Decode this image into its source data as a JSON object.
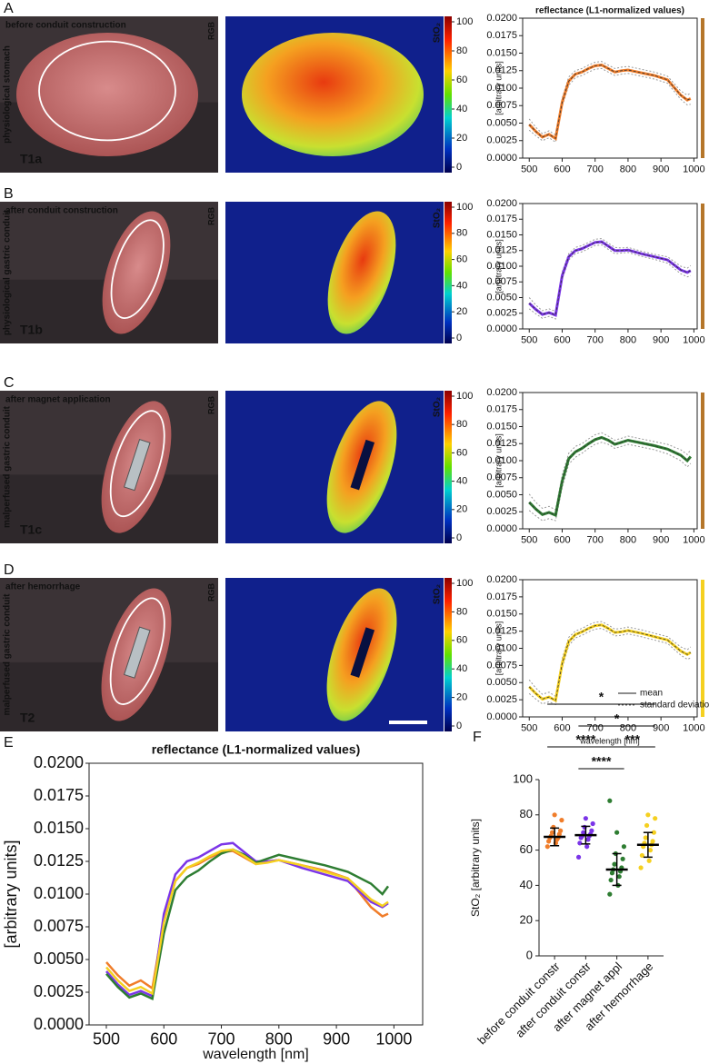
{
  "rows": [
    {
      "letter": "A",
      "condition": "before conduit construction",
      "tissue": "physiological stomach",
      "timepoint": "T1a",
      "rgb_label": "RGB",
      "sto2_label": "StO₂",
      "color": "#f07d2a"
    },
    {
      "letter": "B",
      "condition": "after conduit construction",
      "tissue": "physiological gastric conduit",
      "timepoint": "T1b",
      "rgb_label": "RGB",
      "sto2_label": "StO₂",
      "color": "#7b35e8"
    },
    {
      "letter": "C",
      "condition": "after magnet application",
      "tissue": "malperfused gastric conduit",
      "timepoint": "T1c",
      "rgb_label": "RGB",
      "sto2_label": "StO₂",
      "color": "#2e7d32"
    },
    {
      "letter": "D",
      "condition": "after hemorrhage",
      "tissue": "malperfused gastric conduit",
      "timepoint": "T2",
      "rgb_label": "RGB",
      "sto2_label": "StO₂",
      "color": "#f5d020"
    }
  ],
  "colorbar": {
    "ticks": [
      0,
      20,
      40,
      60,
      80,
      100
    ]
  },
  "chart_data": [
    {
      "type": "spectrum",
      "title": "reflectance (L1-normalized values)",
      "ylabel": "[arbitrary units]",
      "color": "#f07d2a",
      "bar_color": "#b5762a",
      "x": [
        500,
        520,
        540,
        560,
        580,
        600,
        620,
        640,
        660,
        680,
        700,
        720,
        740,
        760,
        780,
        800,
        840,
        880,
        920,
        960,
        980,
        990
      ],
      "values": [
        0.0048,
        0.0038,
        0.003,
        0.0034,
        0.0028,
        0.008,
        0.011,
        0.012,
        0.0123,
        0.0128,
        0.0132,
        0.0133,
        0.0128,
        0.0123,
        0.0125,
        0.0126,
        0.0122,
        0.0118,
        0.0112,
        0.009,
        0.0083,
        0.0085
      ],
      "sd": [
        0.0008,
        0.0006,
        0.0005,
        0.0005,
        0.0005,
        0.0006,
        0.0006,
        0.0005,
        0.0005,
        0.0005,
        0.0005,
        0.0005,
        0.0005,
        0.0005,
        0.0005,
        0.0005,
        0.0005,
        0.0005,
        0.0005,
        0.0006,
        0.0007,
        0.0008
      ],
      "xlim": [
        480,
        1010
      ],
      "xticks": [
        500,
        600,
        700,
        800,
        900,
        1000
      ],
      "ylim": [
        0,
        0.02
      ],
      "yticks": [
        {
          "value": 0,
          "label": "0.0000"
        },
        {
          "value": 0.0025,
          "label": "0.0025"
        },
        {
          "value": 0.005,
          "label": "0.0050"
        },
        {
          "value": 0.0075,
          "label": "0.0075"
        },
        {
          "value": 0.01,
          "label": "0.0100"
        },
        {
          "value": 0.0125,
          "label": "0.0125"
        },
        {
          "value": 0.015,
          "label": "0.0150"
        },
        {
          "value": 0.0175,
          "label": "0.0175"
        },
        {
          "value": 0.02,
          "label": "0.0200"
        }
      ]
    },
    {
      "type": "spectrum",
      "ylabel": "[arbitrary units]",
      "color": "#7b35e8",
      "bar_color": "#b5762a",
      "x": [
        500,
        520,
        540,
        560,
        580,
        600,
        620,
        640,
        660,
        680,
        700,
        720,
        740,
        760,
        780,
        800,
        840,
        880,
        920,
        960,
        980,
        990
      ],
      "values": [
        0.0041,
        0.0031,
        0.0023,
        0.0026,
        0.0022,
        0.0085,
        0.0115,
        0.0125,
        0.0128,
        0.0133,
        0.0138,
        0.0139,
        0.0132,
        0.0125,
        0.0125,
        0.0126,
        0.012,
        0.0115,
        0.011,
        0.0094,
        0.009,
        0.0093
      ],
      "sd": [
        0.0009,
        0.0007,
        0.0006,
        0.0006,
        0.0006,
        0.0006,
        0.0005,
        0.0005,
        0.0005,
        0.0005,
        0.0005,
        0.0005,
        0.0005,
        0.0005,
        0.0004,
        0.0004,
        0.0004,
        0.0004,
        0.0005,
        0.0006,
        0.0007,
        0.0008
      ],
      "xlim": [
        480,
        1010
      ],
      "xticks": [
        500,
        600,
        700,
        800,
        900,
        1000
      ],
      "ylim": [
        0,
        0.02
      ],
      "yticks": [
        {
          "value": 0,
          "label": "0.0000"
        },
        {
          "value": 0.0025,
          "label": "0.0025"
        },
        {
          "value": 0.005,
          "label": "0.0050"
        },
        {
          "value": 0.0075,
          "label": "0.0075"
        },
        {
          "value": 0.01,
          "label": "0.0100"
        },
        {
          "value": 0.0125,
          "label": "0.0125"
        },
        {
          "value": 0.015,
          "label": "0.0150"
        },
        {
          "value": 0.0175,
          "label": "0.0175"
        },
        {
          "value": 0.02,
          "label": "0.0200"
        }
      ]
    },
    {
      "type": "spectrum",
      "ylabel": "[arbitrary units]",
      "color": "#2e7d32",
      "bar_color": "#b5762a",
      "x": [
        500,
        520,
        540,
        560,
        580,
        600,
        620,
        640,
        660,
        680,
        700,
        720,
        740,
        760,
        780,
        800,
        840,
        880,
        920,
        960,
        980,
        990
      ],
      "values": [
        0.0039,
        0.0029,
        0.0021,
        0.0024,
        0.002,
        0.007,
        0.0103,
        0.0113,
        0.0118,
        0.0125,
        0.0131,
        0.0134,
        0.013,
        0.0124,
        0.0127,
        0.013,
        0.0126,
        0.0122,
        0.0117,
        0.0108,
        0.01,
        0.0106
      ],
      "sd": [
        0.0012,
        0.001,
        0.0009,
        0.0009,
        0.0008,
        0.0009,
        0.0008,
        0.0008,
        0.0007,
        0.0007,
        0.0007,
        0.0007,
        0.0006,
        0.0006,
        0.0006,
        0.0006,
        0.0006,
        0.0006,
        0.0007,
        0.0008,
        0.0009,
        0.001
      ],
      "xlim": [
        480,
        1010
      ],
      "xticks": [
        500,
        600,
        700,
        800,
        900,
        1000
      ],
      "ylim": [
        0,
        0.02
      ],
      "yticks": [
        {
          "value": 0,
          "label": "0.0000"
        },
        {
          "value": 0.0025,
          "label": "0.0025"
        },
        {
          "value": 0.005,
          "label": "0.0050"
        },
        {
          "value": 0.0075,
          "label": "0.0075"
        },
        {
          "value": 0.01,
          "label": "0.0100"
        },
        {
          "value": 0.0125,
          "label": "0.0125"
        },
        {
          "value": 0.015,
          "label": "0.0150"
        },
        {
          "value": 0.0175,
          "label": "0.0175"
        },
        {
          "value": 0.02,
          "label": "0.0200"
        }
      ]
    },
    {
      "type": "spectrum",
      "ylabel": "[arbitrary units]",
      "xlabel": "wavelength [nm]",
      "color": "#f5d020",
      "bar_color": "#f5d020",
      "legend": [
        "mean",
        "standard deviation"
      ],
      "x": [
        500,
        520,
        540,
        560,
        580,
        600,
        620,
        640,
        660,
        680,
        700,
        720,
        740,
        760,
        780,
        800,
        840,
        880,
        920,
        960,
        980,
        990
      ],
      "values": [
        0.0044,
        0.0034,
        0.0026,
        0.0029,
        0.0024,
        0.0078,
        0.011,
        0.012,
        0.0124,
        0.0129,
        0.0133,
        0.0134,
        0.0129,
        0.0123,
        0.0124,
        0.0126,
        0.0122,
        0.0117,
        0.0112,
        0.0096,
        0.0091,
        0.0094
      ],
      "sd": [
        0.001,
        0.0008,
        0.0007,
        0.0007,
        0.0006,
        0.0007,
        0.0006,
        0.0005,
        0.0005,
        0.0005,
        0.0005,
        0.0005,
        0.0005,
        0.0005,
        0.0005,
        0.0005,
        0.0005,
        0.0005,
        0.0005,
        0.0006,
        0.0007,
        0.0008
      ],
      "xlim": [
        480,
        1010
      ],
      "xticks": [
        500,
        600,
        700,
        800,
        900,
        1000
      ],
      "ylim": [
        0,
        0.02
      ],
      "yticks": [
        {
          "value": 0,
          "label": "0.0000"
        },
        {
          "value": 0.0025,
          "label": "0.0025"
        },
        {
          "value": 0.005,
          "label": "0.0050"
        },
        {
          "value": 0.0075,
          "label": "0.0075"
        },
        {
          "value": 0.01,
          "label": "0.0100"
        },
        {
          "value": 0.0125,
          "label": "0.0125"
        },
        {
          "value": 0.015,
          "label": "0.0150"
        },
        {
          "value": 0.0175,
          "label": "0.0175"
        },
        {
          "value": 0.02,
          "label": "0.0200"
        }
      ]
    },
    {
      "type": "line",
      "panel": "E",
      "title": "reflectance (L1-normalized values)",
      "ylabel": "[arbitrary units]",
      "xlabel": "wavelength [nm]",
      "x": [
        500,
        520,
        540,
        560,
        580,
        600,
        620,
        640,
        660,
        680,
        700,
        720,
        740,
        760,
        780,
        800,
        840,
        880,
        920,
        960,
        980,
        990
      ],
      "series": [
        {
          "color": "#f07d2a",
          "values": [
            0.0048,
            0.0038,
            0.003,
            0.0034,
            0.0028,
            0.008,
            0.011,
            0.012,
            0.0123,
            0.0128,
            0.0132,
            0.0133,
            0.0128,
            0.0123,
            0.0125,
            0.0126,
            0.0122,
            0.0118,
            0.0112,
            0.009,
            0.0083,
            0.0085
          ]
        },
        {
          "color": "#7b35e8",
          "values": [
            0.0041,
            0.0031,
            0.0023,
            0.0026,
            0.0022,
            0.0085,
            0.0115,
            0.0125,
            0.0128,
            0.0133,
            0.0138,
            0.0139,
            0.0132,
            0.0125,
            0.0125,
            0.0126,
            0.012,
            0.0115,
            0.011,
            0.0094,
            0.009,
            0.0093
          ]
        },
        {
          "color": "#2e7d32",
          "values": [
            0.0039,
            0.0029,
            0.0021,
            0.0024,
            0.002,
            0.007,
            0.0103,
            0.0113,
            0.0118,
            0.0125,
            0.0131,
            0.0134,
            0.013,
            0.0124,
            0.0127,
            0.013,
            0.0126,
            0.0122,
            0.0117,
            0.0108,
            0.01,
            0.0106
          ]
        },
        {
          "color": "#f5d020",
          "values": [
            0.0044,
            0.0034,
            0.0026,
            0.0029,
            0.0024,
            0.0078,
            0.011,
            0.012,
            0.0124,
            0.0129,
            0.0133,
            0.0134,
            0.0129,
            0.0123,
            0.0124,
            0.0126,
            0.0122,
            0.0117,
            0.0112,
            0.0096,
            0.0091,
            0.0094
          ]
        }
      ],
      "xlim": [
        470,
        1050
      ],
      "xticks": [
        500,
        600,
        700,
        800,
        900,
        1000
      ],
      "ylim": [
        0,
        0.02
      ],
      "yticks": [
        {
          "value": 0,
          "label": "0.0000"
        },
        {
          "value": 0.0025,
          "label": "0.0025"
        },
        {
          "value": 0.005,
          "label": "0.0050"
        },
        {
          "value": 0.0075,
          "label": "0.0075"
        },
        {
          "value": 0.01,
          "label": "0.0100"
        },
        {
          "value": 0.0125,
          "label": "0.0125"
        },
        {
          "value": 0.015,
          "label": "0.0150"
        },
        {
          "value": 0.0175,
          "label": "0.0175"
        },
        {
          "value": 0.02,
          "label": "0.0200"
        }
      ]
    },
    {
      "type": "dot",
      "panel": "F",
      "ylabel": "StO₂ [arbitrary units]",
      "categories": [
        "before conduit constr",
        "after conduit constr",
        "after magnet appl",
        "after hemorrhage"
      ],
      "colors": [
        "#f07d2a",
        "#7b35e8",
        "#2e7d32",
        "#f5d020"
      ],
      "points": [
        [
          62,
          64,
          65,
          66,
          67,
          67,
          68,
          69,
          70,
          71,
          73,
          77,
          80
        ],
        [
          56,
          62,
          64,
          66,
          67,
          68,
          68,
          69,
          70,
          71,
          73,
          75,
          78
        ],
        [
          35,
          40,
          43,
          45,
          47,
          48,
          49,
          50,
          52,
          55,
          58,
          62,
          70,
          88
        ],
        [
          50,
          54,
          57,
          60,
          62,
          63,
          64,
          65,
          67,
          70,
          74,
          78,
          80
        ]
      ],
      "means": [
        67.5,
        68.5,
        49,
        63
      ],
      "sd": [
        5,
        5,
        9,
        7
      ],
      "ylim": [
        0,
        100
      ],
      "yticks": [
        0,
        20,
        40,
        60,
        80,
        100
      ],
      "brackets": [
        {
          "from": 0,
          "to": 3,
          "label": "*"
        },
        {
          "from": 1,
          "to": 3,
          "label": "*"
        },
        {
          "from": 0,
          "to": 2,
          "label": "****"
        },
        {
          "from": 2,
          "to": 3,
          "label": "***"
        },
        {
          "from": 1,
          "to": 2,
          "label": "****"
        }
      ]
    }
  ]
}
